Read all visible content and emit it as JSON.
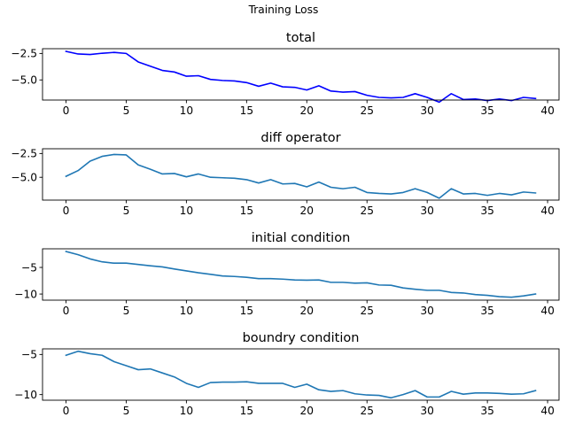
{
  "figure": {
    "suptitle": "Training Loss"
  },
  "chart_data": [
    {
      "type": "line",
      "title": "total",
      "xlabel": "",
      "ylabel": "",
      "color": "#0000ff",
      "xlim": [
        -1.95,
        40.95
      ],
      "ylim": [
        -6.9,
        -2.05
      ],
      "xticks": [
        0,
        5,
        10,
        15,
        20,
        25,
        30,
        35,
        40
      ],
      "yticks": [
        -2.5,
        -5.0
      ],
      "yticklabels": [
        "−2.5",
        "−5.0"
      ],
      "x": [
        0,
        1,
        2,
        3,
        4,
        5,
        6,
        7,
        8,
        9,
        10,
        11,
        12,
        13,
        14,
        15,
        16,
        17,
        18,
        19,
        20,
        21,
        22,
        23,
        24,
        25,
        26,
        27,
        28,
        29,
        30,
        31,
        32,
        33,
        34,
        35,
        36,
        37,
        38,
        39
      ],
      "values": [
        -2.3,
        -2.55,
        -2.6,
        -2.48,
        -2.4,
        -2.5,
        -3.3,
        -3.7,
        -4.1,
        -4.25,
        -4.65,
        -4.6,
        -4.95,
        -5.05,
        -5.1,
        -5.25,
        -5.6,
        -5.3,
        -5.65,
        -5.7,
        -5.95,
        -5.55,
        -6.05,
        -6.15,
        -6.1,
        -6.45,
        -6.65,
        -6.7,
        -6.65,
        -6.3,
        -6.65,
        -7.1,
        -6.3,
        -6.85,
        -6.8,
        -6.95,
        -6.8,
        -6.95,
        -6.65,
        -6.75
      ]
    },
    {
      "type": "line",
      "title": "diff operator",
      "xlabel": "",
      "ylabel": "",
      "color": "#1f77b4",
      "xlim": [
        -1.95,
        40.95
      ],
      "ylim": [
        -7.4,
        -2.0
      ],
      "xticks": [
        0,
        5,
        10,
        15,
        20,
        25,
        30,
        35,
        40
      ],
      "yticks": [
        -2.5,
        -5.0
      ],
      "yticklabels": [
        "−2.5",
        "−5.0"
      ],
      "x": [
        0,
        1,
        2,
        3,
        4,
        5,
        6,
        7,
        8,
        9,
        10,
        11,
        12,
        13,
        14,
        15,
        16,
        17,
        18,
        19,
        20,
        21,
        22,
        23,
        24,
        25,
        26,
        27,
        28,
        29,
        30,
        31,
        32,
        33,
        34,
        35,
        36,
        37,
        38,
        39
      ],
      "values": [
        -4.9,
        -4.3,
        -3.3,
        -2.8,
        -2.6,
        -2.65,
        -3.7,
        -4.15,
        -4.65,
        -4.6,
        -4.95,
        -4.65,
        -5.0,
        -5.05,
        -5.1,
        -5.25,
        -5.6,
        -5.25,
        -5.7,
        -5.65,
        -6.0,
        -5.5,
        -6.05,
        -6.2,
        -6.05,
        -6.6,
        -6.7,
        -6.75,
        -6.6,
        -6.2,
        -6.6,
        -7.2,
        -6.2,
        -6.75,
        -6.7,
        -6.9,
        -6.7,
        -6.85,
        -6.55,
        -6.65
      ]
    },
    {
      "type": "line",
      "title": "initial condition",
      "xlabel": "",
      "ylabel": "",
      "color": "#1f77b4",
      "xlim": [
        -1.95,
        40.95
      ],
      "ylim": [
        -11.15,
        -1.5
      ],
      "xticks": [
        0,
        5,
        10,
        15,
        20,
        25,
        30,
        35,
        40
      ],
      "yticks": [
        -5,
        -10
      ],
      "yticklabels": [
        "−5",
        "−10"
      ],
      "x": [
        0,
        1,
        2,
        3,
        4,
        5,
        6,
        7,
        8,
        9,
        10,
        11,
        12,
        13,
        14,
        15,
        16,
        17,
        18,
        19,
        20,
        21,
        22,
        23,
        24,
        25,
        26,
        27,
        28,
        29,
        30,
        31,
        32,
        33,
        34,
        35,
        36,
        37,
        38,
        39
      ],
      "values": [
        -2.0,
        -2.6,
        -3.4,
        -3.95,
        -4.2,
        -4.2,
        -4.45,
        -4.7,
        -4.9,
        -5.3,
        -5.65,
        -6.0,
        -6.3,
        -6.6,
        -6.7,
        -6.85,
        -7.1,
        -7.1,
        -7.2,
        -7.35,
        -7.4,
        -7.35,
        -7.8,
        -7.8,
        -7.95,
        -7.9,
        -8.3,
        -8.35,
        -8.85,
        -9.1,
        -9.3,
        -9.3,
        -9.7,
        -9.8,
        -10.1,
        -10.25,
        -10.5,
        -10.6,
        -10.35,
        -10.0
      ]
    },
    {
      "type": "line",
      "title": "boundry condition",
      "xlabel": "",
      "ylabel": "",
      "color": "#1f77b4",
      "xlim": [
        -1.95,
        40.95
      ],
      "ylim": [
        -10.7,
        -4.3
      ],
      "xticks": [
        0,
        5,
        10,
        15,
        20,
        25,
        30,
        35,
        40
      ],
      "yticks": [
        -5,
        -10
      ],
      "yticklabels": [
        "−5",
        "−10"
      ],
      "x": [
        0,
        1,
        2,
        3,
        4,
        5,
        6,
        7,
        8,
        9,
        10,
        11,
        12,
        13,
        14,
        15,
        16,
        17,
        18,
        19,
        20,
        21,
        22,
        23,
        24,
        25,
        26,
        27,
        28,
        29,
        30,
        31,
        32,
        33,
        34,
        35,
        36,
        37,
        38,
        39
      ],
      "values": [
        -5.1,
        -4.6,
        -4.9,
        -5.1,
        -5.9,
        -6.4,
        -6.9,
        -6.8,
        -7.3,
        -7.8,
        -8.6,
        -9.1,
        -8.5,
        -8.45,
        -8.45,
        -8.4,
        -8.6,
        -8.6,
        -8.6,
        -9.1,
        -8.7,
        -9.4,
        -9.6,
        -9.5,
        -9.9,
        -10.05,
        -10.1,
        -10.4,
        -10.0,
        -9.5,
        -10.3,
        -10.3,
        -9.6,
        -9.95,
        -9.8,
        -9.8,
        -9.85,
        -9.95,
        -9.9,
        -9.5
      ]
    }
  ]
}
